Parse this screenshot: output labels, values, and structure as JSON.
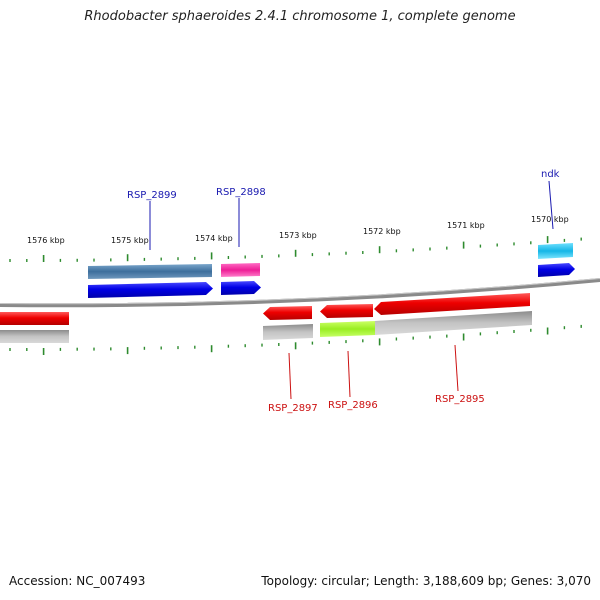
{
  "title": "Rhodobacter sphaeroides 2.4.1 chromosome 1, complete genome",
  "accession_label": "Accession: NC_007493",
  "summary_label": "Topology: circular; Length: 3,188,609 bp; Genes: 3,070",
  "colors": {
    "backbone": "#8a8a8a",
    "ticks": "#2e8b2e",
    "forward_label": "#1a1ab0",
    "reverse_label": "#cc1111"
  },
  "scale": {
    "unit": "kbp",
    "labels": [
      "1576 kbp",
      "1575 kbp",
      "1574 kbp",
      "1573 kbp",
      "1572 kbp",
      "1571 kbp",
      "1570 kbp"
    ]
  },
  "genes": [
    {
      "label": "RSP_2899",
      "strand": "forward",
      "label_color": "#1a1ab0"
    },
    {
      "label": "RSP_2898",
      "strand": "forward",
      "label_color": "#1a1ab0"
    },
    {
      "label": "ndk",
      "strand": "forward",
      "label_color": "#1a1ab0"
    },
    {
      "label": "RSP_2897",
      "strand": "reverse",
      "label_color": "#cc1111"
    },
    {
      "label": "RSP_2896",
      "strand": "reverse",
      "label_color": "#cc1111"
    },
    {
      "label": "RSP_2895",
      "strand": "reverse",
      "label_color": "#cc1111"
    }
  ]
}
